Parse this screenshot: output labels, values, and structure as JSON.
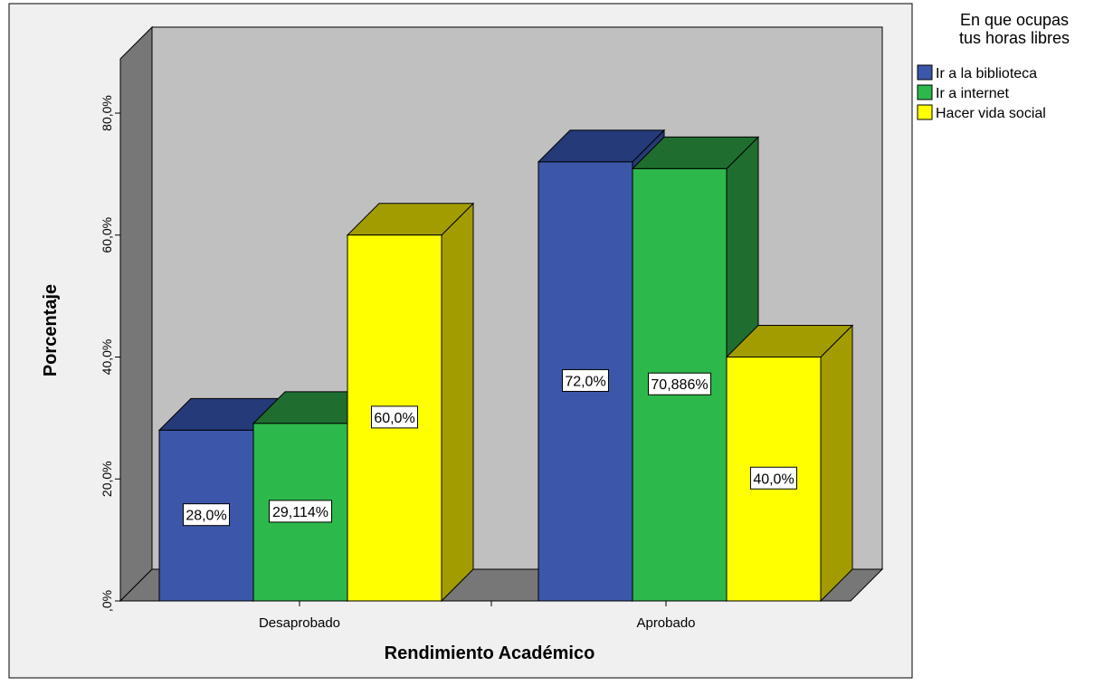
{
  "chart_data": {
    "type": "bar",
    "title": "",
    "xlabel": "Rendimiento Académico",
    "ylabel": "Porcentaje",
    "categories": [
      "Desaprobado",
      "Aprobado"
    ],
    "ylim": [
      0,
      80
    ],
    "yticks": [
      {
        "value": 0,
        "label": ",0%"
      },
      {
        "value": 20,
        "label": "20,0%"
      },
      {
        "value": 40,
        "label": "40,0%"
      },
      {
        "value": 60,
        "label": "60,0%"
      },
      {
        "value": 80,
        "label": "80,0%"
      }
    ],
    "grid": false,
    "legend": {
      "title_lines": [
        "En que ocupas",
        "tus horas libres"
      ],
      "placement": "top-right"
    },
    "series": [
      {
        "name": "Ir a la biblioteca",
        "color": "#3c56a9",
        "top_color": "#253a78",
        "side_color": "#253a78",
        "values": [
          28.0,
          72.0
        ],
        "labels": [
          "28,0%",
          "72,0%"
        ]
      },
      {
        "name": "Ir a internet",
        "color": "#2db84b",
        "top_color": "#1f6e30",
        "side_color": "#1f6e30",
        "values": [
          29.114,
          70.886
        ],
        "labels": [
          "29,114%",
          "70,886%"
        ]
      },
      {
        "name": "Hacer vida social",
        "color": "#ffff00",
        "top_color": "#a39c00",
        "side_color": "#a39c00",
        "values": [
          60.0,
          40.0
        ],
        "labels": [
          "60,0%",
          "40,0%"
        ]
      }
    ],
    "colors": {
      "plot_back": "#c0c0c0",
      "plot_left_wall": "#777777",
      "plot_floor": "#777777",
      "outer_frame": "#f0f0f0"
    }
  }
}
